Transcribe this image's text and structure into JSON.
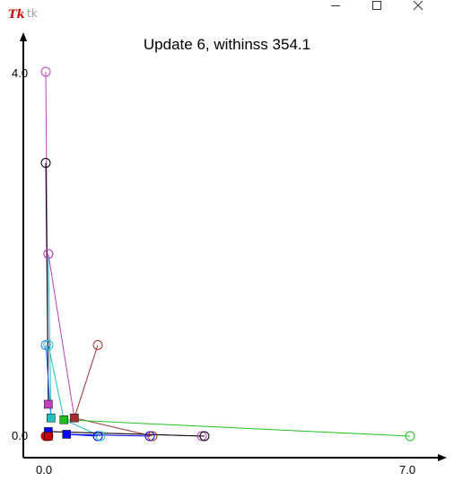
{
  "window": {
    "title": "tk",
    "icon": "tk-feather-icon"
  },
  "chart_data": {
    "type": "scatter",
    "title": "Update 6, withinss 354.1",
    "x_ticks": [
      "0.0",
      "7.0"
    ],
    "y_ticks": [
      "4.0",
      "0.0"
    ],
    "xlim": [
      0,
      7
    ],
    "ylim": [
      0,
      4
    ],
    "points": [
      {
        "x": 0.0,
        "y": 4.0,
        "color": "#c040c0"
      },
      {
        "x": 0.0,
        "y": 3.0,
        "color": "#000000"
      },
      {
        "x": 0.05,
        "y": 2.0,
        "color": "#20c0c0"
      },
      {
        "x": 0.05,
        "y": 2.0,
        "color": "#c040c0"
      },
      {
        "x": 0.0,
        "y": 1.0,
        "color": "#2080ff"
      },
      {
        "x": 0.05,
        "y": 1.0,
        "color": "#20c0c0"
      },
      {
        "x": 1.0,
        "y": 1.0,
        "color": "#a03030"
      },
      {
        "x": 1.0,
        "y": 0.0,
        "color": "#0000ff"
      },
      {
        "x": 1.05,
        "y": 0.0,
        "color": "#20c0c0"
      },
      {
        "x": 2.0,
        "y": 0.0,
        "color": "#0000ff"
      },
      {
        "x": 2.05,
        "y": 0.0,
        "color": "#a03030"
      },
      {
        "x": 3.0,
        "y": 0.0,
        "color": "#c040c0"
      },
      {
        "x": 3.05,
        "y": 0.0,
        "color": "#000000"
      },
      {
        "x": 7.0,
        "y": 0.0,
        "color": "#20c020"
      },
      {
        "x": 0.0,
        "y": 0.0,
        "color": "#c00000"
      },
      {
        "x": 0.05,
        "y": 0.0,
        "color": "#c00000"
      }
    ],
    "centroids": [
      {
        "x": 0.05,
        "y": 0.35,
        "color": "#c040c0"
      },
      {
        "x": 0.1,
        "y": 0.2,
        "color": "#20c0c0"
      },
      {
        "x": 0.35,
        "y": 0.18,
        "color": "#20c020"
      },
      {
        "x": 0.55,
        "y": 0.2,
        "color": "#a03030"
      },
      {
        "x": 0.4,
        "y": 0.02,
        "color": "#0000ff"
      },
      {
        "x": 0.05,
        "y": 0.05,
        "color": "#0000ff"
      },
      {
        "x": 0.05,
        "y": 0.0,
        "color": "#c00000"
      }
    ],
    "links": [
      {
        "p": 0,
        "c": 0
      },
      {
        "p": 1,
        "c": 0
      },
      {
        "p": 2,
        "c": 1
      },
      {
        "p": 3,
        "c": 3
      },
      {
        "p": 4,
        "c": 1
      },
      {
        "p": 5,
        "c": 2
      },
      {
        "p": 6,
        "c": 3
      },
      {
        "p": 7,
        "c": 4
      },
      {
        "p": 8,
        "c": 2
      },
      {
        "p": 9,
        "c": 4
      },
      {
        "p": 10,
        "c": 3
      },
      {
        "p": 11,
        "c": 5
      },
      {
        "p": 12,
        "c": 5
      },
      {
        "p": 13,
        "c": 2
      },
      {
        "p": 14,
        "c": 6
      },
      {
        "p": 15,
        "c": 6
      }
    ]
  }
}
